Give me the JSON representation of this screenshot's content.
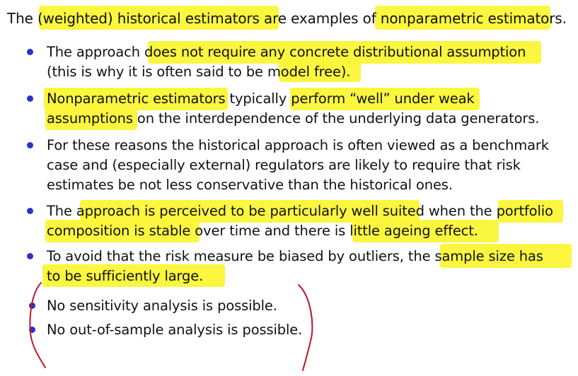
{
  "intro": "The (weighted) historical estimators are examples of nonparametric estimators.",
  "bullets": [
    {
      "lines": [
        "The approach does not require any concrete distributional assumption",
        "(this is why it is often said to be model free)."
      ]
    },
    {
      "lines": [
        "Nonparametric estimators typically perform “well” under weak",
        "assumptions on the interdependence of the underlying data generators."
      ]
    },
    {
      "lines": [
        "For these reasons the historical approach is often viewed as a benchmark",
        "case and (especially external) regulators are likely to require that risk",
        "estimates be not less conservative than the historical ones."
      ]
    },
    {
      "lines": [
        "The approach is perceived to be particularly well suited when the portfolio",
        "composition is stable over time and there is little ageing effect."
      ]
    },
    {
      "lines": [
        "To avoid that the risk measure be biased by outliers, the sample size has",
        "to be sufficiently large."
      ]
    },
    {
      "lines": [
        "No sensitivity analysis is possible."
      ]
    },
    {
      "lines": [
        "No out-of-sample analysis is possible."
      ]
    }
  ],
  "colors": {
    "highlight": "#fbf535",
    "bullet": "#2a32c8",
    "ink": "#c0152a",
    "text": "#111111"
  }
}
